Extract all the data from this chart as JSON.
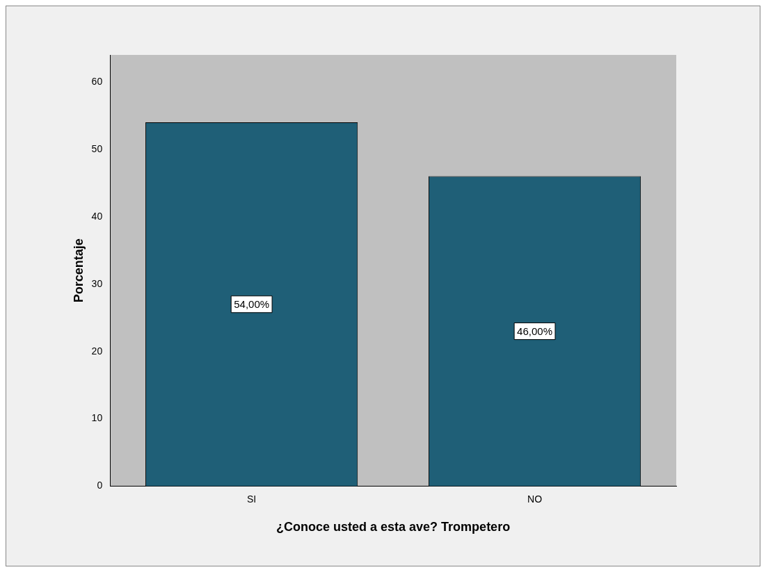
{
  "chart_data": {
    "type": "bar",
    "xlabel": "¿Conoce usted a esta ave? Trompetero",
    "ylabel": "Porcentaje",
    "categories": [
      "SI",
      "NO"
    ],
    "values": [
      54,
      46
    ],
    "color": "#1f5f77",
    "value_labels": [
      "54,00%",
      "46,00%"
    ],
    "ylim": [
      0,
      64
    ],
    "yticks": [
      0,
      10,
      20,
      30,
      40,
      50,
      60
    ],
    "grid": false,
    "legend": false
  }
}
